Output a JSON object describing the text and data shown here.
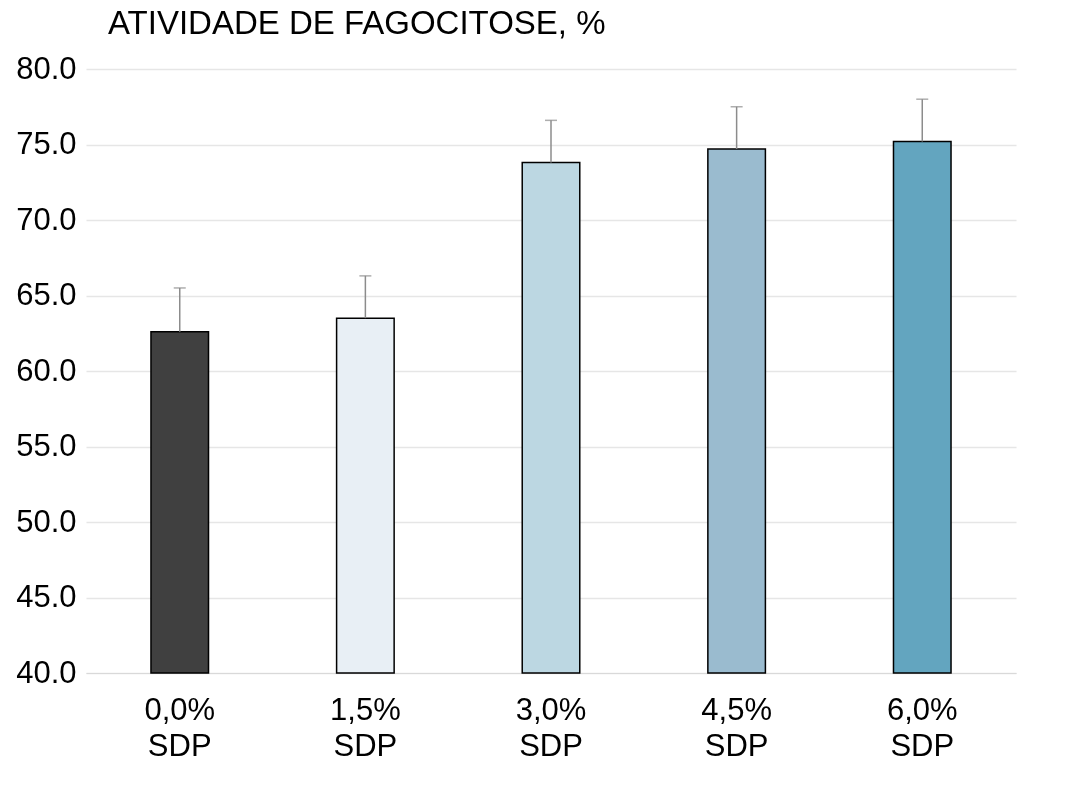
{
  "chart_data": {
    "type": "bar",
    "title": "ATIVIDADE DE FAGOCITOSE, %",
    "categories": [
      "0,0% SDP",
      "1,5% SDP",
      "3,0% SDP",
      "4,5% SDP",
      "6,0% SDP"
    ],
    "values": [
      62.6,
      63.5,
      73.8,
      74.7,
      75.2
    ],
    "colors": [
      "#404040",
      "#e8eff5",
      "#bcd7e2",
      "#9abbcf",
      "#63a5bf"
    ],
    "errors": [
      [
        62.6,
        65.5
      ],
      [
        63.5,
        66.3
      ],
      [
        73.8,
        76.6
      ],
      [
        74.7,
        77.5
      ],
      [
        75.2,
        78.0
      ]
    ],
    "ylim": [
      40,
      80
    ],
    "yticks": [
      {
        "value": 40,
        "label": "40.0"
      },
      {
        "value": 45,
        "label": "45.0"
      },
      {
        "value": 50,
        "label": "50.0"
      },
      {
        "value": 55,
        "label": "55.0"
      },
      {
        "value": 60,
        "label": "60.0"
      },
      {
        "value": 65,
        "label": "65.0"
      },
      {
        "value": 70,
        "label": "70.0"
      },
      {
        "value": 75,
        "label": "75.0"
      },
      {
        "value": 80,
        "label": "80.0"
      }
    ],
    "grid": "y"
  }
}
